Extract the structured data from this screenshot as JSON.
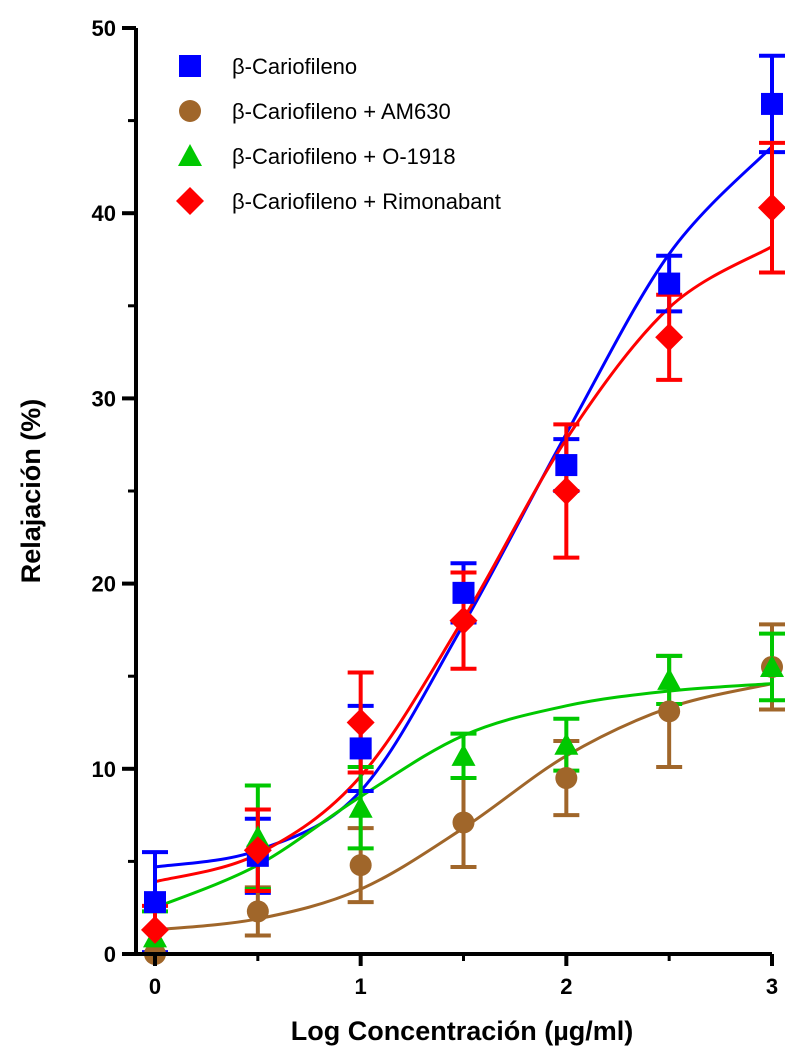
{
  "chart_data": {
    "type": "scatter",
    "xlabel": "Log Concentración (µg/ml)",
    "ylabel": "Relajación (%)",
    "xlim": [
      0,
      3
    ],
    "ylim": [
      0,
      50
    ],
    "x_ticks": [
      "0",
      "1",
      "2",
      "3"
    ],
    "y_ticks": [
      "0",
      "10",
      "20",
      "30",
      "40",
      "50"
    ],
    "grid": false,
    "legend_position": "top-left",
    "x": [
      0,
      0.5,
      1,
      1.5,
      2,
      2.5,
      3
    ],
    "series": [
      {
        "name": "β-Cariofileno",
        "marker": "square",
        "color": "#0000ff",
        "values": [
          2.8,
          5.3,
          11.1,
          19.5,
          26.4,
          36.2,
          45.9
        ],
        "errors": [
          2.7,
          2.0,
          2.3,
          1.6,
          1.4,
          1.5,
          2.6
        ],
        "fit": [
          4.7,
          5.6,
          8.8,
          17.8,
          28.1,
          37.8,
          43.6
        ]
      },
      {
        "name": "β-Cariofileno + AM630",
        "marker": "circle",
        "color": "#a0662a",
        "values": [
          0.0,
          2.3,
          4.8,
          7.1,
          9.5,
          13.1,
          15.5
        ],
        "errors": [
          0.0,
          1.3,
          2.0,
          2.4,
          2.0,
          3.0,
          2.3
        ],
        "fit": [
          1.3,
          1.9,
          3.5,
          6.8,
          10.7,
          13.3,
          14.6
        ]
      },
      {
        "name": "β-Cariofileno + O-1918",
        "marker": "triangle",
        "color": "#00c800",
        "values": [
          0.9,
          6.3,
          7.9,
          10.7,
          11.3,
          14.8,
          15.5
        ],
        "errors": [
          1.4,
          2.8,
          2.2,
          1.2,
          1.4,
          1.3,
          1.8
        ],
        "fit": [
          2.5,
          4.8,
          8.5,
          11.8,
          13.4,
          14.2,
          14.6
        ]
      },
      {
        "name": "β-Cariofileno + Rimonabant",
        "marker": "diamond",
        "color": "#ff0000",
        "values": [
          1.3,
          5.6,
          12.5,
          18.0,
          25.0,
          33.3,
          40.3
        ],
        "errors": [
          1.3,
          2.2,
          2.7,
          2.6,
          3.6,
          2.3,
          3.5
        ],
        "fit": [
          3.9,
          5.4,
          9.6,
          18.1,
          27.8,
          34.9,
          38.2
        ]
      }
    ]
  }
}
